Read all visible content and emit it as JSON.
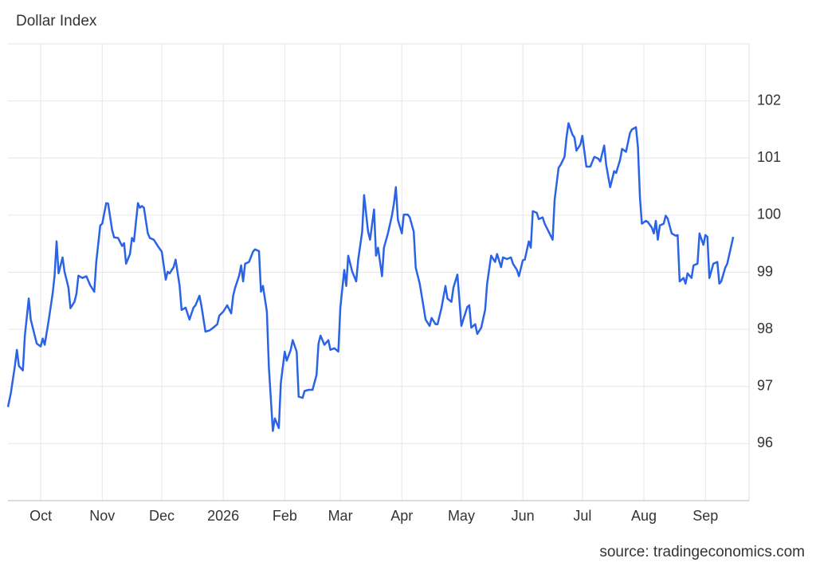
{
  "chart_data": {
    "type": "line",
    "title": "Dollar Index",
    "source": "source: tradingeconomics.com",
    "color": "#2b63e6",
    "grid": true,
    "ylim": [
      95,
      103
    ],
    "yticks": [
      96,
      97,
      98,
      99,
      100,
      101,
      102
    ],
    "xlim": [
      -16.5,
      357
    ],
    "xticks": [
      {
        "value": 0,
        "label": "Oct"
      },
      {
        "value": 31,
        "label": "Nov"
      },
      {
        "value": 61,
        "label": "Dec"
      },
      {
        "value": 92,
        "label": "2026"
      },
      {
        "value": 123,
        "label": "Feb"
      },
      {
        "value": 151,
        "label": "Mar"
      },
      {
        "value": 182,
        "label": "Apr"
      },
      {
        "value": 212,
        "label": "May"
      },
      {
        "value": 243,
        "label": "Jun"
      },
      {
        "value": 273,
        "label": "Jul"
      },
      {
        "value": 304,
        "label": "Aug"
      },
      {
        "value": 335,
        "label": "Sep"
      }
    ],
    "x": [
      -16.5,
      -15,
      -13,
      -12,
      -11,
      -9,
      -8,
      -6,
      -5,
      -3,
      -2,
      0,
      1,
      2,
      4,
      6,
      7,
      8,
      9,
      11,
      12,
      14,
      15,
      17,
      18,
      19,
      21,
      23,
      25,
      27,
      28,
      30,
      31,
      33,
      34,
      36,
      37,
      39,
      41,
      42,
      43,
      45,
      46,
      47,
      49,
      50,
      51,
      52,
      54,
      55,
      57,
      59,
      61,
      63,
      64,
      65,
      67,
      68,
      70,
      71,
      73,
      75,
      77,
      78,
      80,
      81,
      83,
      85,
      87,
      89,
      90,
      92,
      94,
      96,
      97,
      98,
      100,
      101,
      102,
      103,
      105,
      107,
      108,
      110,
      111,
      112,
      114,
      115,
      117,
      118,
      120,
      121,
      123,
      124,
      126,
      127,
      129,
      130,
      132,
      133,
      135,
      137,
      139,
      140,
      141,
      143,
      145,
      146,
      148,
      150,
      151,
      153,
      154,
      155,
      157,
      159,
      160,
      162,
      163,
      165,
      166,
      168,
      169,
      170,
      172,
      173,
      175,
      177,
      178,
      179,
      180,
      182,
      183,
      185,
      186,
      188,
      189,
      191,
      192,
      194,
      196,
      197,
      199,
      200,
      202,
      204,
      205,
      207,
      208,
      210,
      212,
      213,
      215,
      216,
      217,
      219,
      220,
      222,
      224,
      225,
      227,
      229,
      230,
      232,
      233,
      235,
      237,
      238,
      240,
      241,
      243,
      244,
      246,
      247,
      248,
      250,
      251,
      253,
      254,
      256,
      258,
      259,
      261,
      262,
      264,
      265,
      266,
      268,
      269,
      270,
      272,
      273,
      275,
      277,
      279,
      281,
      282,
      284,
      285,
      287,
      289,
      290,
      292,
      293,
      295,
      297,
      298,
      300,
      301,
      302,
      303,
      305,
      306,
      308,
      309,
      310,
      311,
      312,
      314,
      315,
      316,
      318,
      320,
      321,
      322,
      324,
      325,
      326,
      328,
      329,
      331,
      332,
      334,
      335,
      336,
      337,
      339,
      341,
      342,
      343,
      345,
      346,
      348,
      349
    ],
    "values": [
      96.64,
      96.89,
      97.36,
      97.64,
      97.36,
      97.28,
      97.89,
      98.54,
      98.17,
      97.89,
      97.75,
      97.7,
      97.84,
      97.73,
      98.15,
      98.62,
      98.94,
      99.54,
      98.98,
      99.26,
      99.01,
      98.73,
      98.37,
      98.48,
      98.62,
      98.94,
      98.9,
      98.93,
      98.77,
      98.66,
      99.18,
      99.82,
      99.85,
      100.21,
      100.2,
      99.74,
      99.61,
      99.6,
      99.46,
      99.51,
      99.15,
      99.32,
      99.6,
      99.54,
      100.21,
      100.13,
      100.16,
      100.13,
      99.68,
      99.6,
      99.57,
      99.46,
      99.36,
      98.87,
      99.01,
      98.98,
      99.09,
      99.22,
      98.76,
      98.34,
      98.38,
      98.17,
      98.38,
      98.42,
      98.59,
      98.41,
      97.96,
      97.98,
      98.03,
      98.09,
      98.24,
      98.31,
      98.42,
      98.28,
      98.59,
      98.73,
      98.94,
      99.12,
      98.84,
      99.15,
      99.18,
      99.36,
      99.4,
      99.37,
      98.66,
      98.76,
      98.31,
      97.34,
      96.22,
      96.44,
      96.27,
      97.06,
      97.61,
      97.45,
      97.64,
      97.81,
      97.61,
      96.82,
      96.8,
      96.92,
      96.94,
      96.94,
      97.2,
      97.75,
      97.89,
      97.73,
      97.81,
      97.64,
      97.67,
      97.61,
      98.38,
      99.04,
      98.76,
      99.29,
      99.01,
      98.84,
      99.22,
      99.71,
      100.35,
      99.71,
      99.57,
      100.1,
      99.29,
      99.43,
      98.93,
      99.43,
      99.68,
      99.99,
      100.2,
      100.49,
      99.92,
      99.68,
      100.01,
      100.01,
      99.96,
      99.71,
      99.08,
      98.8,
      98.59,
      98.17,
      98.06,
      98.2,
      98.09,
      98.09,
      98.38,
      98.76,
      98.54,
      98.48,
      98.73,
      98.96,
      98.06,
      98.17,
      98.39,
      98.42,
      98.03,
      98.09,
      97.92,
      98.03,
      98.34,
      98.8,
      99.29,
      99.18,
      99.32,
      99.09,
      99.26,
      99.23,
      99.26,
      99.15,
      99.04,
      98.93,
      99.21,
      99.22,
      99.54,
      99.43,
      100.07,
      100.04,
      99.93,
      99.96,
      99.85,
      99.71,
      99.57,
      100.27,
      100.83,
      100.88,
      101.02,
      101.36,
      101.61,
      101.41,
      101.36,
      101.13,
      101.24,
      101.39,
      100.85,
      100.85,
      101.02,
      100.99,
      100.94,
      101.22,
      100.88,
      100.49,
      100.77,
      100.74,
      100.97,
      101.16,
      101.11,
      101.44,
      101.5,
      101.54,
      101.18,
      100.3,
      99.85,
      99.9,
      99.88,
      99.78,
      99.68,
      99.9,
      99.57,
      99.82,
      99.85,
      99.99,
      99.94,
      99.68,
      99.64,
      99.65,
      98.84,
      98.9,
      98.8,
      98.98,
      98.9,
      99.12,
      99.15,
      99.68,
      99.48,
      99.65,
      99.62,
      98.9,
      99.15,
      99.18,
      98.8,
      98.84,
      99.08,
      99.15,
      99.46,
      99.62
    ]
  }
}
